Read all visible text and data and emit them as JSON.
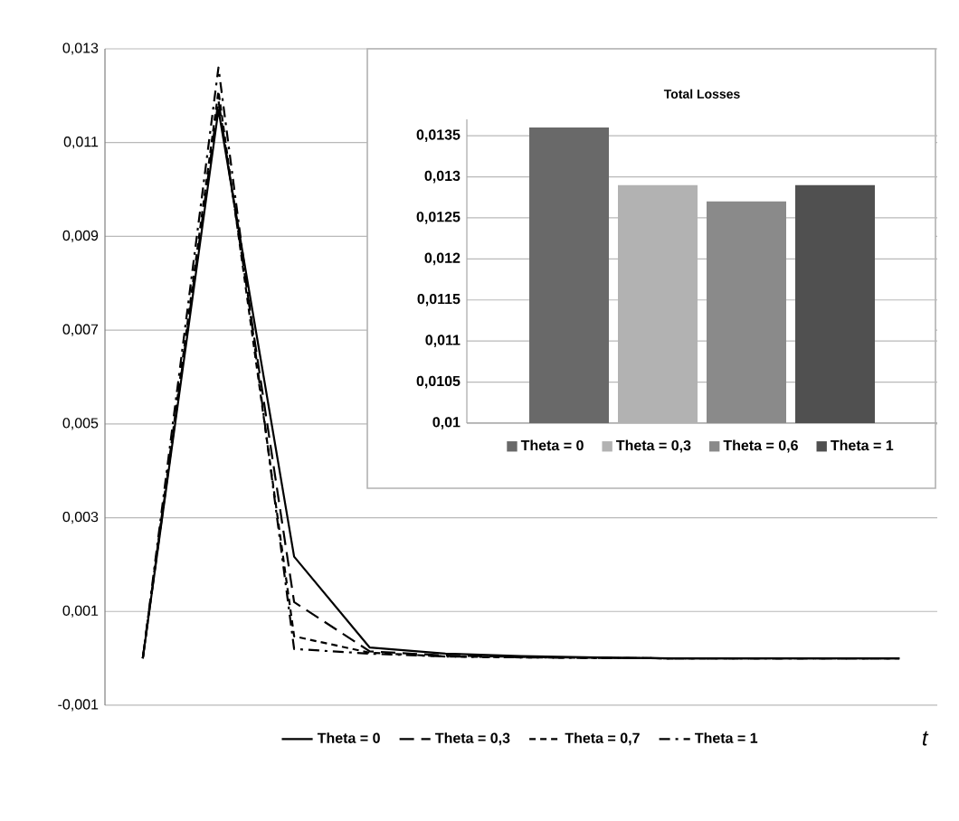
{
  "chart_data": [
    {
      "type": "line",
      "xlabel": "t",
      "categories": [
        null,
        null,
        null,
        null,
        null,
        null,
        null,
        null,
        null,
        null,
        null
      ],
      "series": [
        {
          "name": "Theta = 0",
          "color": "#000000",
          "line_style": "solid",
          "values": [
            0,
            0.0117,
            0.00217,
            0.00023,
            0.0001,
            5e-05,
            2e-05,
            0,
            0,
            0,
            0
          ]
        },
        {
          "name": "Theta = 0,3",
          "color": "#000000",
          "line_style": "longdash",
          "values": [
            0,
            0.0119,
            0.0012,
            0.00015,
            6e-05,
            3e-05,
            1e-05,
            0,
            0,
            0,
            0
          ]
        },
        {
          "name": "Theta = 0,7",
          "color": "#000000",
          "line_style": "dashed",
          "values": [
            0,
            0.0121,
            0.00047,
            0.00012,
            4e-05,
            2e-05,
            1e-05,
            0,
            0,
            0,
            0
          ]
        },
        {
          "name": "Theta = 1",
          "color": "#000000",
          "line_style": "dashdot",
          "values": [
            0,
            0.0126,
            0.0002,
            0.0001,
            4e-05,
            2e-05,
            1e-05,
            0,
            0,
            0,
            0
          ]
        }
      ],
      "ylim": [
        -0.001,
        0.013
      ],
      "yticks": [
        {
          "value": -0.001,
          "label": "-0,001"
        },
        {
          "value": 0.001,
          "label": "0,001"
        },
        {
          "value": 0.003,
          "label": "0,003"
        },
        {
          "value": 0.005,
          "label": "0,005"
        },
        {
          "value": 0.007,
          "label": "0,007"
        },
        {
          "value": 0.009,
          "label": "0,009"
        },
        {
          "value": 0.011,
          "label": "0,011"
        },
        {
          "value": 0.013,
          "label": "0,013"
        }
      ],
      "grid": "y",
      "legend": "bottom"
    },
    {
      "type": "bar",
      "title": "Total Losses",
      "categories": [
        null
      ],
      "series": [
        {
          "name": "Theta = 0",
          "color": "#696969",
          "values": [
            0.0136
          ]
        },
        {
          "name": "Theta = 0,3",
          "color": "#b2b2b2",
          "values": [
            0.0129
          ]
        },
        {
          "name": "Theta = 0,6",
          "color": "#8a8a8a",
          "values": [
            0.0127
          ]
        },
        {
          "name": "Theta = 1",
          "color": "#505050",
          "values": [
            0.0129
          ]
        }
      ],
      "ylim": [
        0.01,
        0.0137
      ],
      "yticks": [
        {
          "value": 0.01,
          "label": "0,01"
        },
        {
          "value": 0.0105,
          "label": "0,0105"
        },
        {
          "value": 0.011,
          "label": "0,011"
        },
        {
          "value": 0.0115,
          "label": "0,0115"
        },
        {
          "value": 0.012,
          "label": "0,012"
        },
        {
          "value": 0.0125,
          "label": "0,0125"
        },
        {
          "value": 0.013,
          "label": "0,013"
        },
        {
          "value": 0.0135,
          "label": "0,0135"
        }
      ],
      "grid": "y",
      "legend": "bottom"
    }
  ]
}
